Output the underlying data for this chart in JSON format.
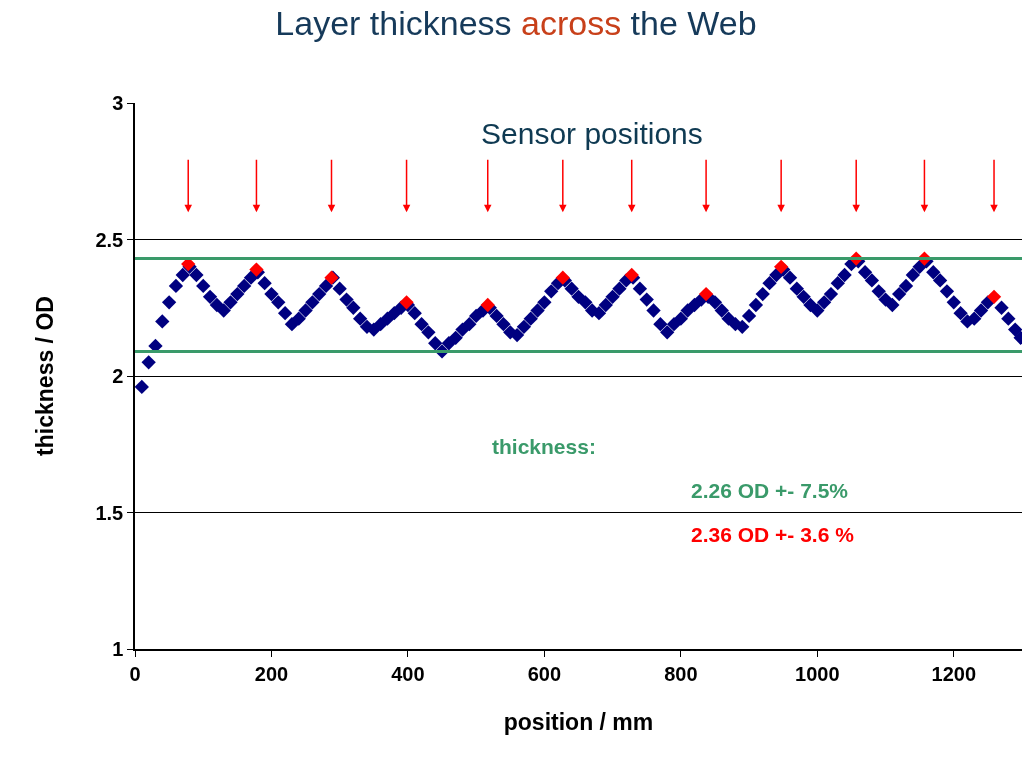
{
  "chart_data": {
    "type": "scatter",
    "title": "Layer thickness across the Web",
    "xlabel": "position / mm",
    "ylabel": "thickness / OD",
    "xlim": [
      0,
      1300
    ],
    "xticks": [
      0,
      200,
      400,
      600,
      800,
      1000,
      1200
    ],
    "ylim": [
      1,
      3
    ],
    "yticks": [
      1,
      1.5,
      2,
      2.5,
      3
    ],
    "grid": "y",
    "marker": "diamond",
    "series": [
      {
        "color": "#000080",
        "x": [
          10,
          20,
          30,
          40,
          50,
          60,
          70,
          80,
          90,
          100,
          110,
          120,
          130,
          140,
          150,
          160,
          170,
          180,
          190,
          200,
          210,
          220,
          230,
          240,
          250,
          260,
          270,
          280,
          290,
          300,
          310,
          320,
          330,
          340,
          350,
          360,
          370,
          380,
          390,
          400,
          410,
          420,
          430,
          440,
          450,
          460,
          470,
          480,
          490,
          500,
          510,
          520,
          530,
          540,
          550,
          560,
          570,
          580,
          590,
          600,
          610,
          620,
          630,
          640,
          650,
          660,
          670,
          680,
          690,
          700,
          710,
          720,
          730,
          740,
          750,
          760,
          770,
          780,
          790,
          800,
          810,
          820,
          830,
          840,
          850,
          860,
          870,
          880,
          890,
          900,
          910,
          920,
          930,
          940,
          950,
          960,
          970,
          980,
          990,
          1000,
          1010,
          1020,
          1030,
          1040,
          1050,
          1060,
          1070,
          1080,
          1090,
          1100,
          1110,
          1120,
          1130,
          1140,
          1150,
          1160,
          1170,
          1180,
          1190,
          1200,
          1210,
          1220,
          1230,
          1240,
          1250,
          1260,
          1270,
          1280,
          1290,
          1298
        ],
        "values": [
          1.96,
          2.05,
          2.11,
          2.2,
          2.27,
          2.33,
          2.37,
          2.4,
          2.37,
          2.33,
          2.29,
          2.26,
          2.24,
          2.27,
          2.3,
          2.33,
          2.36,
          2.38,
          2.34,
          2.3,
          2.27,
          2.23,
          2.19,
          2.21,
          2.24,
          2.27,
          2.3,
          2.33,
          2.36,
          2.32,
          2.28,
          2.25,
          2.21,
          2.18,
          2.17,
          2.19,
          2.21,
          2.23,
          2.25,
          2.26,
          2.23,
          2.19,
          2.16,
          2.12,
          2.09,
          2.12,
          2.14,
          2.17,
          2.19,
          2.22,
          2.24,
          2.25,
          2.22,
          2.19,
          2.16,
          2.15,
          2.18,
          2.21,
          2.24,
          2.27,
          2.31,
          2.34,
          2.35,
          2.32,
          2.29,
          2.27,
          2.24,
          2.23,
          2.26,
          2.29,
          2.32,
          2.35,
          2.36,
          2.32,
          2.28,
          2.24,
          2.19,
          2.16,
          2.19,
          2.21,
          2.24,
          2.26,
          2.28,
          2.29,
          2.27,
          2.24,
          2.21,
          2.19,
          2.18,
          2.22,
          2.26,
          2.3,
          2.34,
          2.37,
          2.39,
          2.36,
          2.32,
          2.29,
          2.26,
          2.24,
          2.27,
          2.3,
          2.34,
          2.37,
          2.41,
          2.42,
          2.38,
          2.35,
          2.31,
          2.28,
          2.26,
          2.3,
          2.33,
          2.37,
          2.4,
          2.42,
          2.38,
          2.35,
          2.31,
          2.27,
          2.23,
          2.2,
          2.21,
          2.24,
          2.27,
          null,
          2.25,
          2.21,
          2.17,
          2.14
        ]
      },
      {
        "color": "#ff0000",
        "x": [
          78,
          178,
          288,
          398,
          517,
          627,
          728,
          837,
          947,
          1057,
          1157,
          1259
        ],
        "values": [
          2.41,
          2.39,
          2.36,
          2.27,
          2.26,
          2.36,
          2.37,
          2.3,
          2.4,
          2.43,
          2.43,
          2.29
        ]
      }
    ],
    "ref_lines": [
      {
        "axis": "y",
        "value": 2.43,
        "color": "#3a9a6a"
      },
      {
        "axis": "y",
        "value": 2.09,
        "color": "#3a9a6a"
      }
    ],
    "annotations": [
      "Sensor positions",
      "thickness:",
      "2.26 OD +- 7.5%",
      "2.36 OD +- 3.6 %"
    ]
  }
}
